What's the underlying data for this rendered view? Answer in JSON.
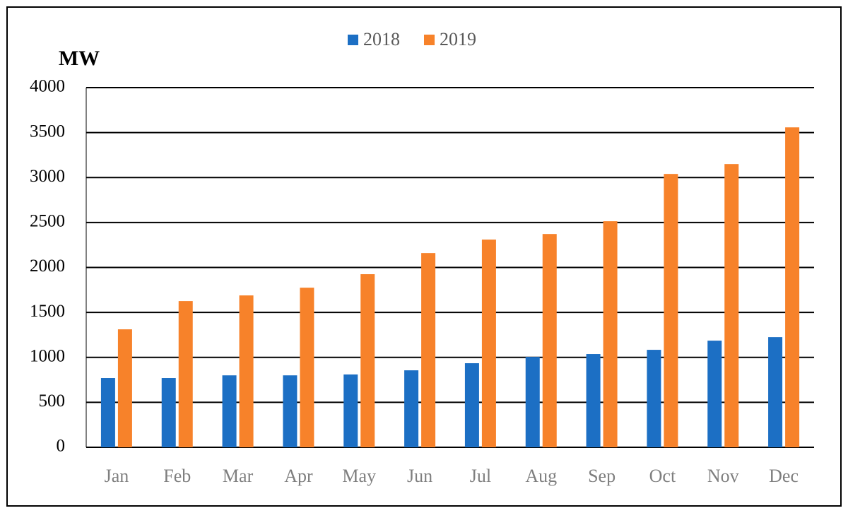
{
  "chart_data": {
    "type": "bar",
    "y_label": "MW",
    "categories": [
      "Jan",
      "Feb",
      "Mar",
      "Apr",
      "May",
      "Jun",
      "Jul",
      "Aug",
      "Sep",
      "Oct",
      "Nov",
      "Dec"
    ],
    "series": [
      {
        "name": "2018",
        "color": "#1c6fc4",
        "values": [
          770,
          770,
          800,
          800,
          810,
          856,
          935,
          1005,
          1037,
          1084,
          1186,
          1225
        ]
      },
      {
        "name": "2019",
        "color": "#f7822a",
        "values": [
          1312,
          1626,
          1689,
          1775,
          1925,
          2160,
          2310,
          2372,
          2514,
          3040,
          3150,
          3558
        ]
      }
    ],
    "ylim": [
      0,
      4000
    ],
    "yticks": [
      0,
      500,
      1000,
      1500,
      2000,
      2500,
      3000,
      3500,
      4000
    ],
    "grid": true,
    "legend": "top"
  }
}
